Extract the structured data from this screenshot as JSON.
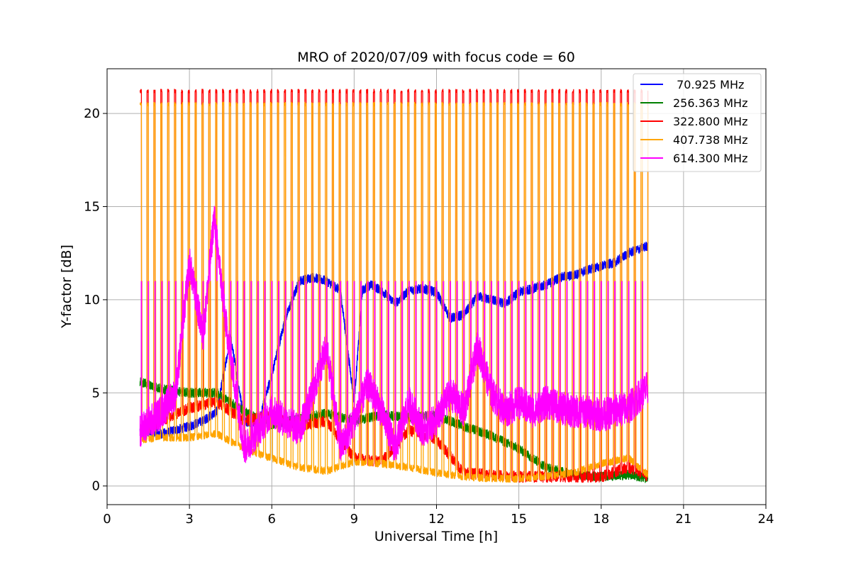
{
  "chart_data": {
    "type": "line",
    "title": "MRO of 2020/07/09 with focus code = 60",
    "xlabel": "Universal Time [h]",
    "ylabel": "Y-factor [dB]",
    "xlim": [
      0,
      24
    ],
    "ylim": [
      -1,
      22.4
    ],
    "xticks": [
      0,
      3,
      6,
      9,
      12,
      15,
      18,
      21,
      24
    ],
    "yticks": [
      0,
      5,
      10,
      15,
      20
    ],
    "grid": true,
    "legend_position": "top-right",
    "series": [
      {
        "name": " 70.925 MHz",
        "color": "#0000ff",
        "x": [
          1.2,
          2.0,
          3.0,
          3.5,
          4.0,
          4.5,
          5.0,
          5.5,
          6.0,
          6.5,
          7.0,
          7.5,
          8.0,
          8.5,
          9.0,
          9.3,
          9.6,
          10.0,
          10.5,
          11.0,
          11.5,
          12.0,
          12.5,
          13.0,
          13.5,
          14.0,
          14.5,
          15.0,
          15.5,
          16.0,
          16.5,
          17.0,
          17.5,
          18.0,
          18.5,
          19.0,
          19.7
        ],
        "values": [
          3.0,
          2.8,
          3.2,
          3.5,
          4.0,
          8.0,
          3.5,
          3.3,
          6.0,
          9.0,
          11.0,
          11.2,
          11.0,
          10.5,
          4.5,
          10.5,
          10.8,
          10.5,
          9.8,
          10.5,
          10.6,
          10.4,
          9.0,
          9.2,
          10.2,
          10.0,
          9.8,
          10.4,
          10.6,
          10.8,
          11.2,
          11.3,
          11.6,
          11.8,
          12.0,
          12.5,
          12.9
        ]
      },
      {
        "name": "256.363 MHz",
        "color": "#008000",
        "x": [
          1.2,
          2.0,
          3.0,
          4.0,
          5.0,
          6.0,
          7.0,
          8.0,
          9.0,
          10.0,
          11.0,
          12.0,
          13.0,
          14.0,
          15.0,
          16.0,
          17.0,
          18.0,
          19.0,
          19.7
        ],
        "values": [
          5.6,
          5.2,
          5.0,
          5.0,
          4.0,
          3.3,
          3.6,
          3.9,
          3.5,
          3.8,
          3.7,
          3.8,
          3.2,
          2.7,
          2.0,
          1.0,
          0.6,
          0.5,
          0.6,
          0.4
        ]
      },
      {
        "name": "322.800 MHz",
        "color": "#ff0000",
        "x": [
          1.2,
          2.0,
          3.0,
          4.0,
          5.0,
          6.0,
          7.0,
          8.0,
          9.0,
          10.0,
          11.0,
          12.0,
          13.0,
          14.0,
          15.0,
          16.0,
          17.0,
          18.0,
          19.0,
          19.7
        ],
        "values": [
          3.0,
          3.5,
          4.2,
          4.5,
          3.5,
          3.8,
          3.2,
          3.5,
          1.5,
          1.3,
          3.0,
          2.5,
          0.7,
          0.6,
          0.5,
          0.5,
          0.5,
          0.5,
          1.0,
          0.5
        ],
        "peak": 21.2
      },
      {
        "name": "407.738 MHz",
        "color": "#ffa500",
        "x": [
          1.2,
          2.0,
          3.0,
          4.0,
          5.0,
          6.0,
          7.0,
          8.0,
          9.0,
          10.0,
          11.0,
          12.0,
          13.0,
          14.0,
          15.0,
          16.0,
          17.0,
          18.0,
          19.0,
          19.7
        ],
        "values": [
          2.5,
          2.6,
          2.6,
          2.8,
          2.0,
          1.5,
          1.0,
          0.8,
          1.3,
          1.2,
          1.0,
          0.7,
          0.5,
          0.4,
          0.4,
          0.5,
          0.7,
          1.2,
          1.5,
          0.6
        ],
        "peak": 20.5,
        "mid_level": 11.0
      },
      {
        "name": "614.300 MHz",
        "color": "#ff00ff",
        "x": [
          1.2,
          2.0,
          2.5,
          3.0,
          3.5,
          3.9,
          4.3,
          5.0,
          6.0,
          7.0,
          7.5,
          8.0,
          8.5,
          9.0,
          9.5,
          10.0,
          10.5,
          11.0,
          11.5,
          12.0,
          12.5,
          13.0,
          13.5,
          14.0,
          14.5,
          15.0,
          15.5,
          16.0,
          16.5,
          17.0,
          17.5,
          18.0,
          18.5,
          19.0,
          19.7
        ],
        "values": [
          3.0,
          4.0,
          5.0,
          12.0,
          8.0,
          14.5,
          9.0,
          2.0,
          4.0,
          3.0,
          5.0,
          7.5,
          2.0,
          3.5,
          5.5,
          4.0,
          2.0,
          4.5,
          3.0,
          3.5,
          5.0,
          4.0,
          7.5,
          5.0,
          4.0,
          4.5,
          4.0,
          4.5,
          4.2,
          4.0,
          4.0,
          3.8,
          4.0,
          4.2,
          5.3
        ]
      }
    ]
  }
}
